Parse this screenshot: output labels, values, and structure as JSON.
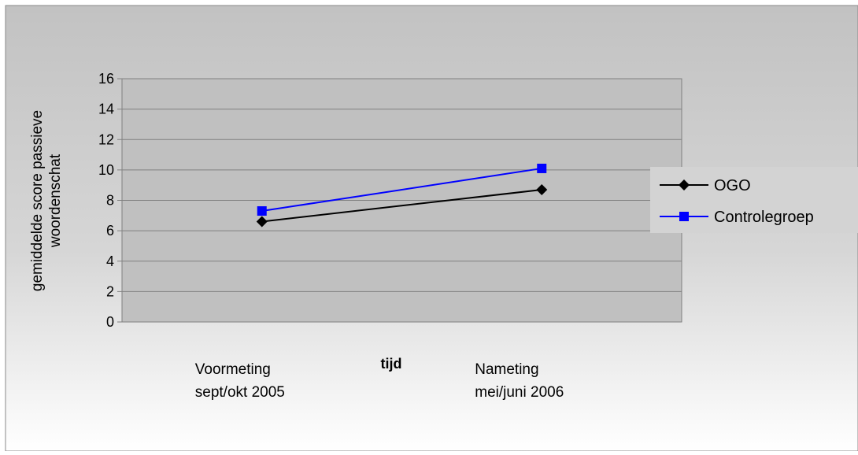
{
  "chart_data": {
    "type": "line",
    "categories": [
      [
        "Voormeting",
        "sept/okt 2005"
      ],
      [
        "Nameting",
        "mei/juni 2006"
      ]
    ],
    "series": [
      {
        "name": "OGO",
        "values": [
          6.6,
          8.7
        ],
        "color": "#000000",
        "marker": "diamond"
      },
      {
        "name": "Controlegroep",
        "values": [
          7.3,
          10.1
        ],
        "color": "#0000FF",
        "marker": "square"
      }
    ],
    "xlabel": "tijd",
    "ylabel": [
      "gemiddelde score passieve",
      "woordenschat"
    ],
    "ylim": [
      0,
      16
    ],
    "yticks": [
      0,
      2,
      4,
      6,
      8,
      10,
      12,
      14,
      16
    ],
    "grid": true,
    "legend": "right",
    "colors": {
      "plot_area": "#C0C0C0",
      "gridline": "#808080",
      "background_top": "#C4C4C4",
      "background_bottom": "#FFFFFF"
    }
  }
}
